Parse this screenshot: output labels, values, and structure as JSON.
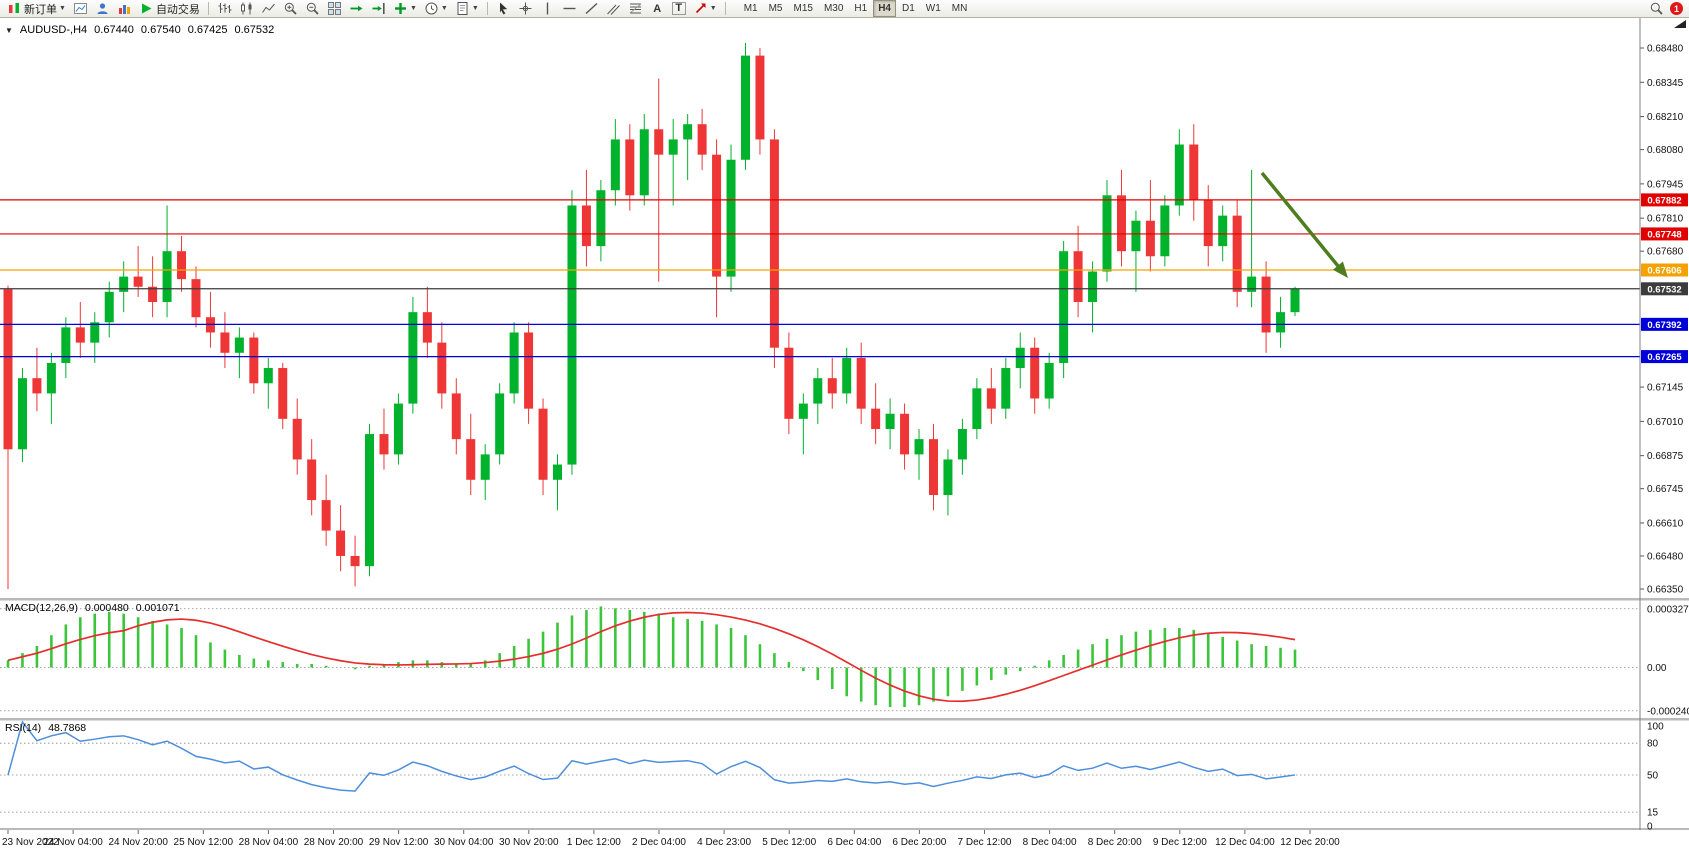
{
  "window": {
    "badge_count": "1"
  },
  "toolbar": {
    "new_order": "新订单",
    "autotrading": "自动交易",
    "timeframes": [
      "M1",
      "M5",
      "M15",
      "M30",
      "H1",
      "H4",
      "D1",
      "W1",
      "MN"
    ],
    "active_timeframe": "H4"
  },
  "chart_header": {
    "symbol": "AUDUSD-,H4",
    "open": "0.67440",
    "high": "0.67540",
    "low": "0.67425",
    "close": "0.67532"
  },
  "macd_panel": {
    "title": "MACD(12,26,9)",
    "value_main": "0.000480",
    "value_signal": "0.001071"
  },
  "rsi_panel": {
    "title": "RSI(14)",
    "value": "48.7868"
  },
  "chart_data": {
    "type": "candlestick",
    "symbol": "AUDUSD",
    "period": "H4",
    "up_color": "#00b22c",
    "down_color": "#ee3636",
    "price_axis_ticks": [
      "0.68480",
      "0.68345",
      "0.68210",
      "0.68080",
      "0.67945",
      "0.67810",
      "0.67680",
      "0.67145",
      "0.67010",
      "0.66875",
      "0.66745",
      "0.66610",
      "0.66480",
      "0.66350"
    ],
    "horizontal_lines": [
      {
        "price": 0.67882,
        "label": "0.67882",
        "color": "#e00000",
        "type": "resistance"
      },
      {
        "price": 0.67748,
        "label": "0.67748",
        "color": "#e00000",
        "type": "resistance"
      },
      {
        "price": 0.67606,
        "label": "0.67606",
        "color": "#f5a200",
        "type": "pivot"
      },
      {
        "price": 0.67532,
        "label": "0.67532",
        "color": "#3c3c3c",
        "type": "current-price"
      },
      {
        "price": 0.67392,
        "label": "0.67392",
        "color": "#0000d8",
        "type": "support"
      },
      {
        "price": 0.67265,
        "label": "0.67265",
        "color": "#0000d8",
        "type": "support"
      }
    ],
    "annotation_arrow": {
      "color": "#4e7d1e",
      "direction": "down-right",
      "from_price": 0.68,
      "to_price": 0.6756
    },
    "time_labels": [
      "23 Nov 2022",
      "24 Nov 04:00",
      "24 Nov 20:00",
      "25 Nov 12:00",
      "28 Nov 04:00",
      "28 Nov 20:00",
      "29 Nov 12:00",
      "30 Nov 04:00",
      "30 Nov 20:00",
      "1 Dec 12:00",
      "2 Dec 04:00",
      "4 Dec 23:00",
      "5 Dec 12:00",
      "6 Dec 04:00",
      "6 Dec 20:00",
      "7 Dec 12:00",
      "8 Dec 04:00",
      "8 Dec 20:00",
      "9 Dec 12:00",
      "12 Dec 04:00",
      "12 Dec 20:00"
    ],
    "candles": [
      [
        0.6753,
        0.67545,
        0.6635,
        0.669
      ],
      [
        0.669,
        0.6722,
        0.6685,
        0.6718
      ],
      [
        0.6718,
        0.673,
        0.6705,
        0.6712
      ],
      [
        0.6712,
        0.6728,
        0.67,
        0.6724
      ],
      [
        0.6724,
        0.6742,
        0.6718,
        0.6738
      ],
      [
        0.6738,
        0.6748,
        0.6726,
        0.6732
      ],
      [
        0.6732,
        0.6744,
        0.6724,
        0.674
      ],
      [
        0.674,
        0.6756,
        0.6734,
        0.6752
      ],
      [
        0.6752,
        0.6764,
        0.6744,
        0.6758
      ],
      [
        0.6758,
        0.677,
        0.675,
        0.6754
      ],
      [
        0.6754,
        0.6766,
        0.6742,
        0.6748
      ],
      [
        0.6748,
        0.6786,
        0.6742,
        0.6768
      ],
      [
        0.6768,
        0.6774,
        0.6752,
        0.6757
      ],
      [
        0.6757,
        0.6762,
        0.6738,
        0.6742
      ],
      [
        0.6742,
        0.6752,
        0.673,
        0.6736
      ],
      [
        0.6736,
        0.6744,
        0.6722,
        0.6728
      ],
      [
        0.6728,
        0.6738,
        0.6718,
        0.6734
      ],
      [
        0.6734,
        0.6736,
        0.6712,
        0.6716
      ],
      [
        0.6716,
        0.6726,
        0.6706,
        0.6722
      ],
      [
        0.6722,
        0.6724,
        0.6698,
        0.6702
      ],
      [
        0.6702,
        0.671,
        0.668,
        0.6686
      ],
      [
        0.6686,
        0.6694,
        0.6664,
        0.667
      ],
      [
        0.667,
        0.668,
        0.6652,
        0.6658
      ],
      [
        0.6658,
        0.6668,
        0.6642,
        0.6648
      ],
      [
        0.6648,
        0.6656,
        0.6636,
        0.6644
      ],
      [
        0.6644,
        0.67,
        0.664,
        0.6696
      ],
      [
        0.6696,
        0.6706,
        0.6682,
        0.6688
      ],
      [
        0.6688,
        0.6712,
        0.6684,
        0.6708
      ],
      [
        0.6708,
        0.675,
        0.6704,
        0.6744
      ],
      [
        0.6744,
        0.6754,
        0.6726,
        0.6732
      ],
      [
        0.6732,
        0.674,
        0.6706,
        0.6712
      ],
      [
        0.6712,
        0.6718,
        0.6688,
        0.6694
      ],
      [
        0.6694,
        0.6704,
        0.6672,
        0.6678
      ],
      [
        0.6678,
        0.6692,
        0.667,
        0.6688
      ],
      [
        0.6688,
        0.6716,
        0.6684,
        0.6712
      ],
      [
        0.6712,
        0.674,
        0.6708,
        0.6736
      ],
      [
        0.6736,
        0.674,
        0.67,
        0.6706
      ],
      [
        0.6706,
        0.671,
        0.6672,
        0.6678
      ],
      [
        0.6678,
        0.6688,
        0.6666,
        0.6684
      ],
      [
        0.6684,
        0.6792,
        0.668,
        0.6786
      ],
      [
        0.6786,
        0.68,
        0.6762,
        0.677
      ],
      [
        0.677,
        0.6796,
        0.6764,
        0.6792
      ],
      [
        0.6792,
        0.682,
        0.6786,
        0.6812
      ],
      [
        0.6812,
        0.6818,
        0.6784,
        0.679
      ],
      [
        0.679,
        0.6822,
        0.6786,
        0.6816
      ],
      [
        0.6816,
        0.6836,
        0.6756,
        0.6806
      ],
      [
        0.6806,
        0.682,
        0.6786,
        0.6812
      ],
      [
        0.6812,
        0.6822,
        0.6796,
        0.6818
      ],
      [
        0.6818,
        0.6824,
        0.68,
        0.6806
      ],
      [
        0.6806,
        0.6812,
        0.6742,
        0.6758
      ],
      [
        0.6758,
        0.681,
        0.6752,
        0.6804
      ],
      [
        0.6804,
        0.685,
        0.68,
        0.6845
      ],
      [
        0.6845,
        0.6848,
        0.6806,
        0.6812
      ],
      [
        0.6812,
        0.6816,
        0.6722,
        0.673
      ],
      [
        0.673,
        0.6736,
        0.6696,
        0.6702
      ],
      [
        0.6702,
        0.6712,
        0.6688,
        0.6708
      ],
      [
        0.6708,
        0.6722,
        0.67,
        0.6718
      ],
      [
        0.6718,
        0.6726,
        0.6706,
        0.6712
      ],
      [
        0.6712,
        0.673,
        0.6708,
        0.6726
      ],
      [
        0.6726,
        0.6732,
        0.67,
        0.6706
      ],
      [
        0.6706,
        0.6716,
        0.6692,
        0.6698
      ],
      [
        0.6698,
        0.671,
        0.669,
        0.6704
      ],
      [
        0.6704,
        0.6708,
        0.6682,
        0.6688
      ],
      [
        0.6688,
        0.6698,
        0.6678,
        0.6694
      ],
      [
        0.6694,
        0.67,
        0.6666,
        0.6672
      ],
      [
        0.6672,
        0.669,
        0.6664,
        0.6686
      ],
      [
        0.6686,
        0.6702,
        0.668,
        0.6698
      ],
      [
        0.6698,
        0.6718,
        0.6694,
        0.6714
      ],
      [
        0.6714,
        0.6722,
        0.67,
        0.6706
      ],
      [
        0.6706,
        0.6726,
        0.6702,
        0.6722
      ],
      [
        0.6722,
        0.6736,
        0.6714,
        0.673
      ],
      [
        0.673,
        0.6734,
        0.6704,
        0.671
      ],
      [
        0.671,
        0.6728,
        0.6706,
        0.6724
      ],
      [
        0.6724,
        0.6772,
        0.6718,
        0.6768
      ],
      [
        0.6768,
        0.6778,
        0.6742,
        0.6748
      ],
      [
        0.6748,
        0.6764,
        0.6736,
        0.676
      ],
      [
        0.676,
        0.6796,
        0.6756,
        0.679
      ],
      [
        0.679,
        0.68,
        0.6762,
        0.6768
      ],
      [
        0.6768,
        0.6784,
        0.6752,
        0.678
      ],
      [
        0.678,
        0.6796,
        0.676,
        0.6766
      ],
      [
        0.6766,
        0.679,
        0.6762,
        0.6786
      ],
      [
        0.6786,
        0.6816,
        0.6782,
        0.681
      ],
      [
        0.681,
        0.6818,
        0.678,
        0.6788
      ],
      [
        0.6788,
        0.6794,
        0.6762,
        0.677
      ],
      [
        0.677,
        0.6786,
        0.6764,
        0.6782
      ],
      [
        0.6782,
        0.6788,
        0.6746,
        0.6752
      ],
      [
        0.6752,
        0.68,
        0.6746,
        0.6758
      ],
      [
        0.6758,
        0.6764,
        0.6728,
        0.6736
      ],
      [
        0.6736,
        0.675,
        0.673,
        0.6744
      ],
      [
        0.6744,
        0.6754,
        0.67425,
        0.67532
      ]
    ],
    "macd_histogram": [
      4e-05,
      8e-05,
      0.00012,
      0.00018,
      0.00024,
      0.00028,
      0.0003,
      0.00031,
      0.0003,
      0.00028,
      0.00026,
      0.00024,
      0.00022,
      0.00018,
      0.00014,
      0.0001,
      7e-05,
      5e-05,
      4e-05,
      3e-05,
      2e-05,
      2e-05,
      1e-05,
      0.0,
      -1e-05,
      1e-05,
      2e-05,
      3e-05,
      4e-05,
      4e-05,
      3e-05,
      2e-05,
      2e-05,
      4e-05,
      8e-05,
      0.00012,
      0.00016,
      0.0002,
      0.00025,
      0.00029,
      0.00032,
      0.00034,
      0.00033,
      0.00032,
      0.00031,
      0.0003,
      0.00028,
      0.00027,
      0.00026,
      0.00024,
      0.00022,
      0.00018,
      0.00013,
      8e-05,
      3e-05,
      -2e-05,
      -7e-05,
      -0.00012,
      -0.00016,
      -0.00019,
      -0.00021,
      -0.00022,
      -0.00022,
      -0.00021,
      -0.00019,
      -0.00016,
      -0.00013,
      -0.0001,
      -7e-05,
      -4e-05,
      -2e-05,
      1e-05,
      4e-05,
      7e-05,
      0.0001,
      0.00013,
      0.00016,
      0.00018,
      0.0002,
      0.00021,
      0.00022,
      0.00022,
      0.00021,
      0.00019,
      0.00017,
      0.00015,
      0.00013,
      0.00012,
      0.00011,
      0.0001
    ],
    "indicators": [
      {
        "name": "MACD",
        "params": [
          12,
          26,
          9
        ],
        "axis_ticks": [
          "0.0003272",
          "0.00",
          "-0.0002409"
        ],
        "histogram_color": "#3bc53b",
        "signal_color": "#e62e2e"
      },
      {
        "name": "RSI",
        "params": [
          14
        ],
        "axis_ticks": [
          "100",
          "80",
          "50",
          "15",
          "0"
        ],
        "levels": [
          80,
          50,
          15
        ],
        "line_color": "#4d8fdb"
      }
    ]
  }
}
